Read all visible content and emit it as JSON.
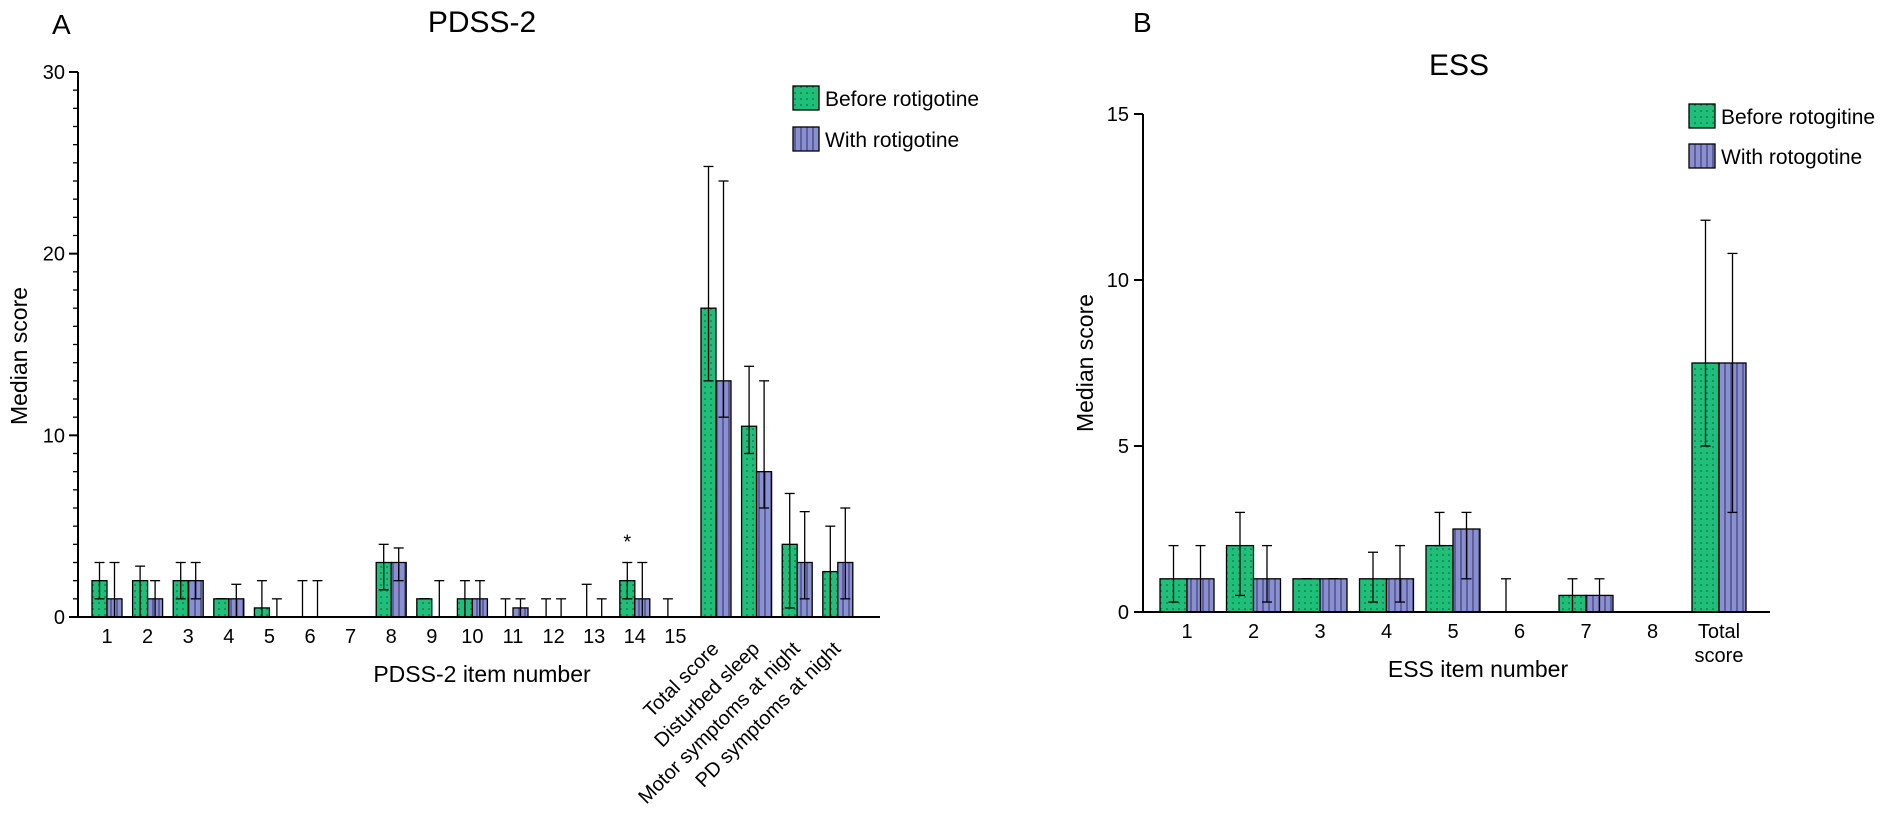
{
  "colors": {
    "before": "#1fbf7a",
    "with": "#8a8fd0",
    "axis": "#000000",
    "text": "#000000"
  },
  "chart_data": [
    {
      "panel_label": "A",
      "type": "bar",
      "title": "PDSS-2",
      "xlabel": "PDSS-2 item number",
      "ylabel": "Median score",
      "ylim": [
        0,
        30
      ],
      "yticks": [
        "0",
        "10",
        "20",
        "30"
      ],
      "legend": [
        "Before rotigotine",
        "With rotigotine"
      ],
      "legend_position": "top-right",
      "categories": [
        "1",
        "2",
        "3",
        "4",
        "5",
        "6",
        "7",
        "8",
        "9",
        "10",
        "11",
        "12",
        "13",
        "14",
        "15",
        "Total score",
        "Disturbed sleep",
        "Motor symptoms at night",
        "PD symptoms at night"
      ],
      "rotated_from_index": 15,
      "significance": [
        {
          "category_index": 13,
          "label": "*"
        }
      ],
      "series": [
        {
          "name": "Before rotigotine",
          "values": [
            2,
            2,
            2,
            1,
            0.5,
            0,
            0,
            3,
            1,
            1,
            0,
            0,
            0,
            2,
            0,
            17,
            10.5,
            4,
            2.5
          ],
          "err_low": [
            1,
            0,
            1,
            1,
            0,
            0,
            0,
            1.5,
            1,
            0,
            0,
            0,
            0,
            1,
            0,
            13,
            9,
            0.5,
            0
          ],
          "err_high": [
            3,
            2.8,
            3,
            1,
            2,
            2,
            0,
            4,
            1,
            2,
            1,
            1,
            1.8,
            3,
            1,
            24.8,
            13.8,
            6.8,
            5
          ]
        },
        {
          "name": "With rotigotine",
          "values": [
            1,
            1,
            2,
            1,
            0,
            0,
            0,
            3,
            0,
            1,
            0.5,
            0,
            0,
            1,
            0,
            13,
            8,
            3,
            3
          ],
          "err_low": [
            0,
            0,
            1,
            0,
            0,
            0,
            0,
            2,
            0,
            0,
            0,
            0,
            0,
            0,
            0,
            11,
            6,
            1,
            1
          ],
          "err_high": [
            3,
            2,
            3,
            1.8,
            1,
            2,
            0,
            3.8,
            2,
            2,
            1,
            1,
            1,
            3,
            0,
            24,
            13,
            5.8,
            6
          ]
        }
      ]
    },
    {
      "panel_label": "B",
      "type": "bar",
      "title": "ESS",
      "xlabel": "ESS item number",
      "ylabel": "Median score",
      "ylim": [
        0,
        15
      ],
      "yticks": [
        "0",
        "5",
        "10",
        "15"
      ],
      "legend": [
        "Before rotogitine",
        "With rotogotine"
      ],
      "legend_position": "top-right",
      "categories": [
        "1",
        "2",
        "3",
        "4",
        "5",
        "6",
        "7",
        "8",
        "Total score"
      ],
      "series": [
        {
          "name": "Before rotogitine",
          "values": [
            1,
            2,
            1,
            1,
            2,
            0,
            0.5,
            0,
            7.5
          ],
          "err_low": [
            0.3,
            0.5,
            1,
            0.3,
            2,
            0,
            0,
            0,
            5
          ],
          "err_high": [
            2,
            3,
            1,
            1.8,
            3,
            1,
            1,
            0,
            11.8
          ]
        },
        {
          "name": "With rotogotine",
          "values": [
            1,
            1,
            1,
            1,
            2.5,
            0,
            0.5,
            0,
            7.5
          ],
          "err_low": [
            0,
            0.3,
            1,
            0.3,
            1,
            0,
            0,
            0,
            3
          ],
          "err_high": [
            2,
            2,
            1,
            2,
            3,
            0,
            1,
            0,
            10.8
          ]
        }
      ]
    }
  ]
}
